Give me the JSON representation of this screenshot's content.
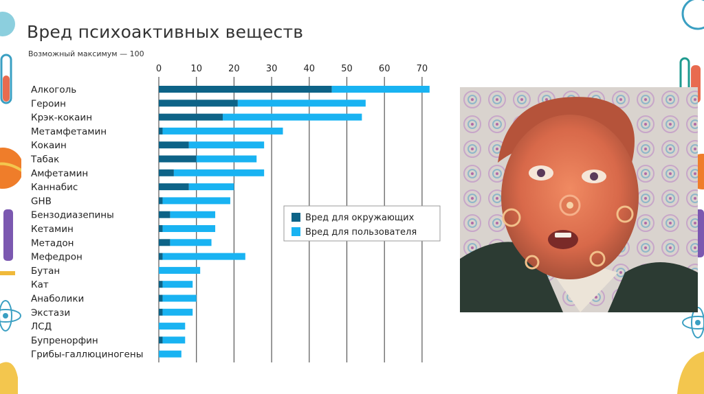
{
  "colors": {
    "environment": "#0d6387",
    "user": "#19b3f2",
    "grid": "#555555",
    "text": "#222222"
  },
  "chart_data": {
    "type": "bar",
    "orientation": "horizontal",
    "stacked": true,
    "title": "Вред психоактивных веществ",
    "subtitle": "Возможный максимум — 100",
    "xlim": [
      0,
      75
    ],
    "xticks": [
      0,
      10,
      20,
      30,
      40,
      50,
      60,
      70
    ],
    "grid": true,
    "legend_position": "right-middle",
    "categories": [
      "Алкоголь",
      "Героин",
      "Крэк-кокаин",
      "Метамфетамин",
      "Кокаин",
      "Табак",
      "Амфетамин",
      "Каннабис",
      "GHB",
      "Бензодиазепины",
      "Кетамин",
      "Метадон",
      "Мефедрон",
      "Бутан",
      "Кат",
      "Анаболики",
      "Экстази",
      "ЛСД",
      "Бупренорфин",
      "Грибы-галлюциногены"
    ],
    "series": [
      {
        "name": "Вред для окружающих",
        "color": "#0d6387",
        "values": [
          46,
          21,
          17,
          1,
          8,
          10,
          4,
          8,
          1,
          3,
          1,
          3,
          1,
          0,
          1,
          1,
          1,
          0,
          1,
          0
        ]
      },
      {
        "name": "Вред для пользователя",
        "color": "#19b3f2",
        "values": [
          26,
          34,
          37,
          32,
          20,
          16,
          24,
          12,
          18,
          12,
          14,
          11,
          22,
          11,
          8,
          9,
          8,
          7,
          6,
          6
        ]
      }
    ]
  },
  "photo": {
    "description_icon": "portrait-photo-icon"
  }
}
